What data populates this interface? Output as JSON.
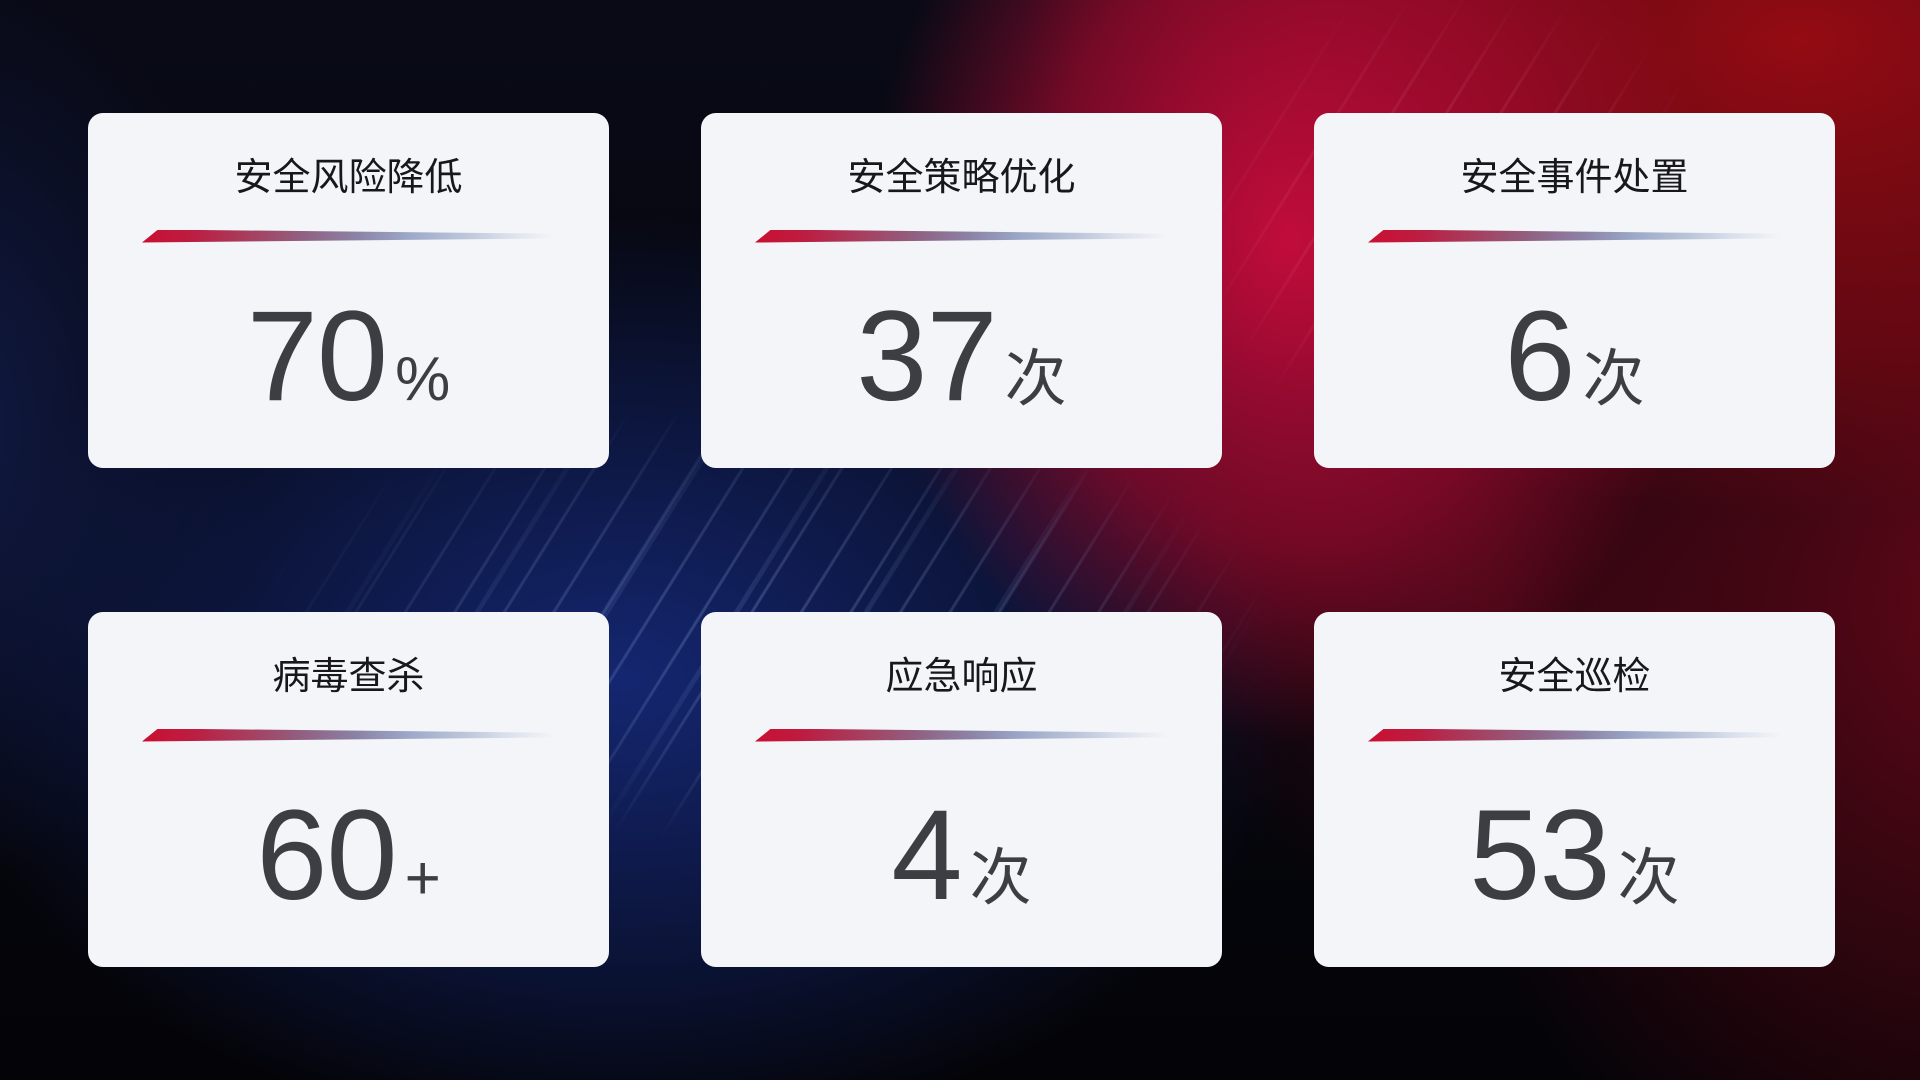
{
  "cards": [
    {
      "title": "安全风险降低",
      "value": "70",
      "unit": "%"
    },
    {
      "title": "安全策略优化",
      "value": "37",
      "unit": "次"
    },
    {
      "title": "安全事件处置",
      "value": "6",
      "unit": "次"
    },
    {
      "title": "病毒查杀",
      "value": "60",
      "unit": "+"
    },
    {
      "title": "应急响应",
      "value": "4",
      "unit": "次"
    },
    {
      "title": "安全巡检",
      "value": "53",
      "unit": "次"
    }
  ],
  "colors": {
    "card_background": "#f4f5f8",
    "title_text": "#17171c",
    "value_text": "#3d3e43",
    "divider_start": "#ca0f31",
    "divider_mid": "#8c82a6",
    "divider_end": "#d9dfeb",
    "background_base": "#05060c",
    "background_blue_glow": "#152876",
    "background_crimson_glow": "#c80c3e",
    "background_red_top_right": "#9b0b13"
  }
}
